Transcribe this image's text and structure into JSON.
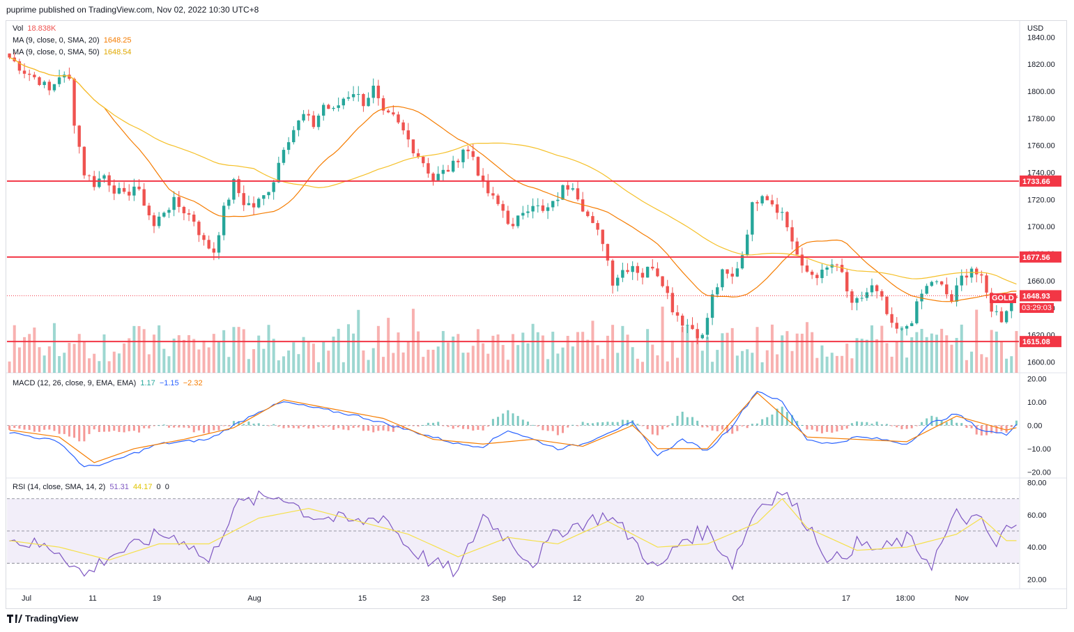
{
  "publisher": "puprime published on TradingView.com, Nov 02, 2022 10:30 UTC+8",
  "brand": "TradingView",
  "symbol": "GOLD",
  "currency": "USD",
  "countdown": "03:29:03",
  "legend": {
    "vol": {
      "label": "Vol",
      "value": "18.838K",
      "color": "#ef5350"
    },
    "ma20": {
      "label": "MA (9, close, 0, SMA, 20)",
      "value": "1648.25",
      "color": "#f57c00"
    },
    "ma50": {
      "label": "MA (9, close, 0, SMA, 50)",
      "value": "1648.54",
      "color": "#f5c028"
    },
    "macd": {
      "label": "MACD (12, 26, close, 9, EMA, EMA)",
      "v1": "1.17",
      "v2": "−1.15",
      "v3": "−2.32"
    },
    "rsi": {
      "label": "RSI (14, close, SMA, 14, 2)",
      "v1": "51.31",
      "v2": "44.17",
      "v3": "0",
      "v4": "0"
    }
  },
  "colors": {
    "up": "#26a69a",
    "down": "#ef5350",
    "ma20": "#f57c00",
    "ma50": "#f5c028",
    "macd": "#2962ff",
    "signal": "#f57c00",
    "rsi": "#7e57c2",
    "rsiMa": "#f5e04a",
    "level": "#f23645"
  },
  "chart_data": [
    {
      "type": "candlestick",
      "title": "GOLD",
      "ylim": [
        1592,
        1852
      ],
      "y_ticks": [
        "1840.00",
        "1820.00",
        "1800.00",
        "1780.00",
        "1760.00",
        "1740.00",
        "1720.00",
        "1700.00",
        "1680.00",
        "1660.00",
        "1640.00",
        "1620.00",
        "1600.00"
      ],
      "x_ticks": [
        "Jul",
        "11",
        "19",
        "Aug",
        "15",
        "23",
        "Sep",
        "12",
        "20",
        "Oct",
        "17",
        "18:00",
        "Nov"
      ],
      "levels": [
        {
          "value": 1733.66,
          "label": "1733.66"
        },
        {
          "value": 1677.56,
          "label": "1677.56"
        },
        {
          "value": 1615.08,
          "label": "1615.08"
        }
      ],
      "last_price": {
        "value": 1648.93,
        "label": "1648.93"
      },
      "close_path": [
        [
          0,
          1825
        ],
        [
          3,
          1815
        ],
        [
          6,
          1808
        ],
        [
          8,
          1800
        ],
        [
          10,
          1812
        ],
        [
          12,
          1808
        ],
        [
          13,
          1778
        ],
        [
          15,
          1740
        ],
        [
          17,
          1732
        ],
        [
          19,
          1738
        ],
        [
          21,
          1728
        ],
        [
          23,
          1722
        ],
        [
          25,
          1730
        ],
        [
          27,
          1718
        ],
        [
          29,
          1700
        ],
        [
          31,
          1712
        ],
        [
          33,
          1718
        ],
        [
          35,
          1712
        ],
        [
          37,
          1705
        ],
        [
          39,
          1688
        ],
        [
          41,
          1682
        ],
        [
          43,
          1712
        ],
        [
          45,
          1732
        ],
        [
          47,
          1718
        ],
        [
          49,
          1715
        ],
        [
          51,
          1722
        ],
        [
          53,
          1735
        ],
        [
          55,
          1760
        ],
        [
          57,
          1772
        ],
        [
          59,
          1782
        ],
        [
          61,
          1775
        ],
        [
          63,
          1790
        ],
        [
          65,
          1785
        ],
        [
          67,
          1795
        ],
        [
          69,
          1800
        ],
        [
          71,
          1792
        ],
        [
          73,
          1802
        ],
        [
          75,
          1782
        ],
        [
          77,
          1780
        ],
        [
          79,
          1770
        ],
        [
          81,
          1758
        ],
        [
          83,
          1748
        ],
        [
          85,
          1735
        ],
        [
          87,
          1740
        ],
        [
          89,
          1745
        ],
        [
          91,
          1758
        ],
        [
          93,
          1752
        ],
        [
          95,
          1730
        ],
        [
          97,
          1720
        ],
        [
          99,
          1712
        ],
        [
          101,
          1698
        ],
        [
          103,
          1712
        ],
        [
          105,
          1718
        ],
        [
          107,
          1710
        ],
        [
          109,
          1716
        ],
        [
          111,
          1728
        ],
        [
          113,
          1732
        ],
        [
          115,
          1715
        ],
        [
          117,
          1700
        ],
        [
          119,
          1690
        ],
        [
          121,
          1660
        ],
        [
          123,
          1668
        ],
        [
          125,
          1672
        ],
        [
          127,
          1664
        ],
        [
          129,
          1672
        ],
        [
          131,
          1660
        ],
        [
          133,
          1640
        ],
        [
          135,
          1630
        ],
        [
          137,
          1625
        ],
        [
          139,
          1618
        ],
        [
          141,
          1648
        ],
        [
          143,
          1665
        ],
        [
          145,
          1662
        ],
        [
          147,
          1680
        ],
        [
          149,
          1715
        ],
        [
          151,
          1726
        ],
        [
          153,
          1718
        ],
        [
          155,
          1710
        ],
        [
          157,
          1690
        ],
        [
          159,
          1668
        ],
        [
          161,
          1665
        ],
        [
          163,
          1665
        ],
        [
          165,
          1672
        ],
        [
          167,
          1665
        ],
        [
          169,
          1640
        ],
        [
          171,
          1648
        ],
        [
          173,
          1655
        ],
        [
          175,
          1645
        ],
        [
          177,
          1625
        ],
        [
          179,
          1622
        ],
        [
          181,
          1632
        ],
        [
          183,
          1650
        ],
        [
          185,
          1660
        ],
        [
          187,
          1655
        ],
        [
          189,
          1645
        ],
        [
          191,
          1662
        ],
        [
          193,
          1670
        ],
        [
          195,
          1660
        ],
        [
          197,
          1640
        ],
        [
          199,
          1632
        ],
        [
          201,
          1648
        ],
        [
          202,
          1649
        ]
      ]
    },
    {
      "type": "line",
      "title": "MACD",
      "ylim": [
        -22,
        22
      ],
      "y_ticks": [
        "20.00",
        "10.00",
        "0.00",
        "−10.00",
        "−20.00"
      ],
      "series": [
        {
          "name": "MACD",
          "values_path": [
            [
              0,
              -3
            ],
            [
              10,
              -7
            ],
            [
              15,
              -18
            ],
            [
              20,
              -16
            ],
            [
              30,
              -8
            ],
            [
              40,
              -6
            ],
            [
              45,
              0
            ],
            [
              50,
              6
            ],
            [
              55,
              10
            ],
            [
              60,
              8
            ],
            [
              70,
              4
            ],
            [
              80,
              -2
            ],
            [
              90,
              -8
            ],
            [
              95,
              -9
            ],
            [
              100,
              -2
            ],
            [
              110,
              -10
            ],
            [
              115,
              -8
            ],
            [
              120,
              -3
            ],
            [
              125,
              1
            ],
            [
              130,
              -13
            ],
            [
              135,
              -6
            ],
            [
              140,
              -11
            ],
            [
              145,
              0
            ],
            [
              150,
              15
            ],
            [
              155,
              10
            ],
            [
              160,
              -6
            ],
            [
              165,
              -8
            ],
            [
              170,
              -5
            ],
            [
              175,
              -6
            ],
            [
              180,
              -8
            ],
            [
              185,
              1
            ],
            [
              190,
              5
            ],
            [
              195,
              -2
            ],
            [
              200,
              -4
            ],
            [
              202,
              1
            ]
          ]
        },
        {
          "name": "Signal",
          "values_path": [
            [
              0,
              -2
            ],
            [
              10,
              -5
            ],
            [
              17,
              -16
            ],
            [
              25,
              -10
            ],
            [
              35,
              -6
            ],
            [
              45,
              -1
            ],
            [
              55,
              11
            ],
            [
              65,
              7
            ],
            [
              75,
              3
            ],
            [
              85,
              -6
            ],
            [
              95,
              -8
            ],
            [
              105,
              -6
            ],
            [
              115,
              -9
            ],
            [
              125,
              0
            ],
            [
              130,
              -10
            ],
            [
              140,
              -10
            ],
            [
              150,
              14
            ],
            [
              160,
              -5
            ],
            [
              170,
              -6
            ],
            [
              180,
              -7
            ],
            [
              190,
              4
            ],
            [
              200,
              -2
            ],
            [
              202,
              -1
            ]
          ]
        }
      ]
    },
    {
      "type": "line",
      "title": "RSI",
      "ylim": [
        15,
        82
      ],
      "y_ticks": [
        "80.00",
        "60.00",
        "40.00",
        "20.00"
      ],
      "band": [
        30,
        70
      ],
      "series": [
        {
          "name": "RSI",
          "values_path": [
            [
              0,
              45
            ],
            [
              10,
              38
            ],
            [
              15,
              22
            ],
            [
              20,
              35
            ],
            [
              25,
              40
            ],
            [
              30,
              48
            ],
            [
              35,
              45
            ],
            [
              40,
              30
            ],
            [
              45,
              65
            ],
            [
              50,
              70
            ],
            [
              55,
              72
            ],
            [
              60,
              60
            ],
            [
              70,
              55
            ],
            [
              75,
              60
            ],
            [
              80,
              40
            ],
            [
              85,
              30
            ],
            [
              90,
              24
            ],
            [
              95,
              60
            ],
            [
              100,
              45
            ],
            [
              105,
              30
            ],
            [
              110,
              50
            ],
            [
              115,
              55
            ],
            [
              120,
              60
            ],
            [
              125,
              45
            ],
            [
              130,
              25
            ],
            [
              135,
              45
            ],
            [
              140,
              50
            ],
            [
              145,
              30
            ],
            [
              150,
              65
            ],
            [
              155,
              75
            ],
            [
              160,
              55
            ],
            [
              165,
              30
            ],
            [
              170,
              42
            ],
            [
              175,
              38
            ],
            [
              180,
              45
            ],
            [
              185,
              30
            ],
            [
              190,
              60
            ],
            [
              195,
              55
            ],
            [
              198,
              40
            ],
            [
              200,
              52
            ],
            [
              202,
              51
            ]
          ]
        },
        {
          "name": "RSI MA",
          "values_path": [
            [
              0,
              44
            ],
            [
              10,
              40
            ],
            [
              20,
              32
            ],
            [
              30,
              42
            ],
            [
              40,
              42
            ],
            [
              50,
              58
            ],
            [
              60,
              64
            ],
            [
              70,
              56
            ],
            [
              80,
              48
            ],
            [
              90,
              34
            ],
            [
              100,
              46
            ],
            [
              110,
              42
            ],
            [
              120,
              56
            ],
            [
              130,
              40
            ],
            [
              140,
              42
            ],
            [
              150,
              55
            ],
            [
              155,
              70
            ],
            [
              160,
              52
            ],
            [
              170,
              38
            ],
            [
              180,
              40
            ],
            [
              190,
              48
            ],
            [
              195,
              58
            ],
            [
              200,
              44
            ],
            [
              202,
              44
            ]
          ]
        }
      ]
    }
  ]
}
